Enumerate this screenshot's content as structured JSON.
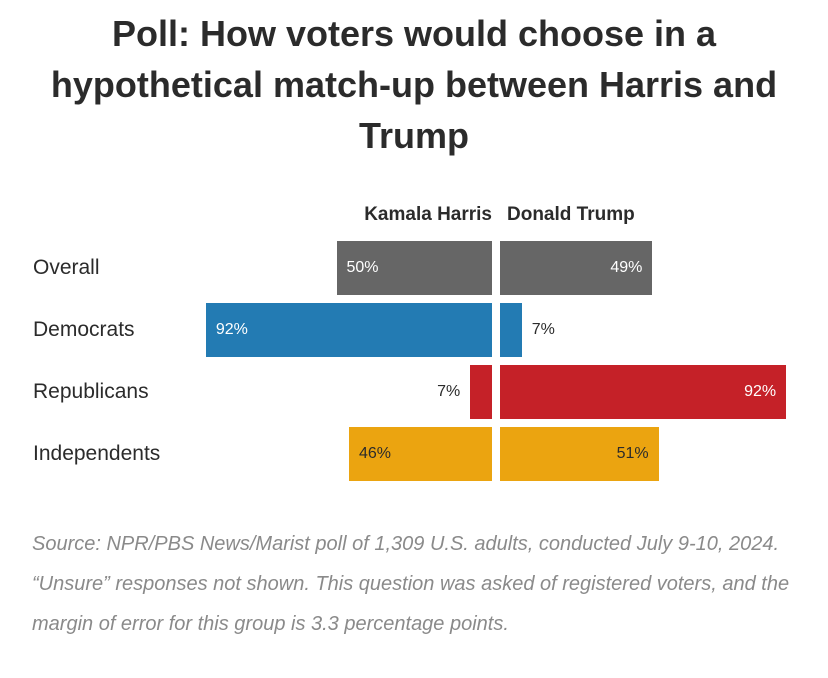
{
  "title": "Poll: How voters would choose in a hypothetical match-up between Harris and Trump",
  "source": "Source: NPR/PBS News/Marist poll of 1,309 U.S. adults, conducted July 9-10, 2024. “Unsure” responses not shown. This question was asked of registered voters, and the margin of error for this group is 3.3 percentage points.",
  "chart_data": {
    "type": "bar",
    "orientation": "diverging-horizontal",
    "title": "Poll: How voters would choose in a hypothetical match-up between Harris and Trump",
    "categories": [
      "Overall",
      "Democrats",
      "Republicans",
      "Independents"
    ],
    "series": [
      {
        "name": "Kamala Harris",
        "values": [
          50,
          92,
          7,
          46
        ],
        "labels": [
          "50%",
          "92%",
          "7%",
          "46%"
        ]
      },
      {
        "name": "Donald Trump",
        "values": [
          49,
          7,
          92,
          51
        ],
        "labels": [
          "49%",
          "7%",
          "92%",
          "51%"
        ]
      }
    ],
    "colors": [
      "#666666",
      "#237bb3",
      "#c52128",
      "#eba410"
    ],
    "unit": "%",
    "xlim": [
      0,
      100
    ],
    "grid": false
  }
}
